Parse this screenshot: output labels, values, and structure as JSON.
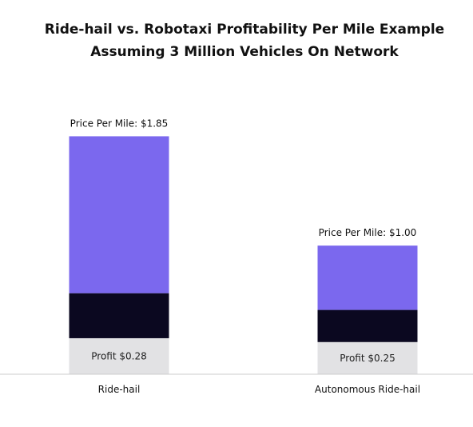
{
  "chart_data": {
    "type": "bar",
    "stacked": true,
    "title": [
      "Ride-hail vs. Robotaxi Profitability Per Mile Example",
      "Assuming 3 Million Vehicles On Network"
    ],
    "categories": [
      "Ride-hail",
      "Autonomous Ride-hail"
    ],
    "totals": [
      1.85,
      1.0
    ],
    "total_labels": [
      "Price Per Mile: $1.85",
      "Price Per Mile: $1.00"
    ],
    "series": [
      {
        "values": [
          0.28,
          0.25
        ],
        "color": "#e2e2e4"
      },
      {
        "values": [
          0.35,
          0.25
        ],
        "color": "#0b0820"
      },
      {
        "values": [
          1.22,
          0.5
        ],
        "color": "#7b68ee"
      }
    ],
    "segment_labels": [
      "Profit $0.28",
      "Profit $0.25"
    ],
    "ylim": [
      0,
      2.35
    ],
    "y_axis_visible": false,
    "grid": false,
    "legend": "none",
    "baseline_color": "#cccccc"
  }
}
